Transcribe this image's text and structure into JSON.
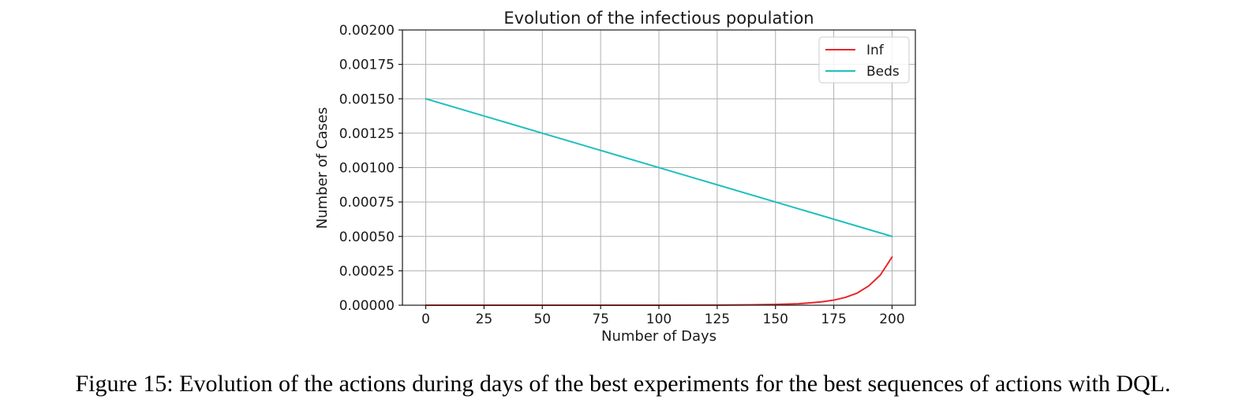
{
  "chart_data": {
    "type": "line",
    "title": "Evolution of the infectious population",
    "xlabel": "Number of Days",
    "ylabel": "Number of Cases",
    "xlim": [
      -10,
      210
    ],
    "ylim": [
      0,
      0.002
    ],
    "xticks": [
      0,
      25,
      50,
      75,
      100,
      125,
      150,
      175,
      200
    ],
    "xtick_labels": [
      "0",
      "25",
      "50",
      "75",
      "100",
      "125",
      "150",
      "175",
      "200"
    ],
    "yticks": [
      0,
      0.00025,
      0.0005,
      0.00075,
      0.001,
      0.00125,
      0.0015,
      0.00175,
      0.002
    ],
    "ytick_labels": [
      "0.00000",
      "0.00025",
      "0.00050",
      "0.00075",
      "0.00100",
      "0.00125",
      "0.00150",
      "0.00175",
      "0.00200"
    ],
    "grid": true,
    "legend_position": "top-right",
    "series": [
      {
        "name": "Inf",
        "color": "#e8262b",
        "x": [
          0,
          25,
          50,
          75,
          100,
          125,
          140,
          150,
          160,
          165,
          170,
          175,
          180,
          185,
          190,
          195,
          200
        ],
        "y": [
          0,
          0,
          0,
          0,
          0,
          1e-06,
          3e-06,
          6e-06,
          1.1e-05,
          1.7e-05,
          2.5e-05,
          3.7e-05,
          5.7e-05,
          8.8e-05,
          0.00014,
          0.00022,
          0.00035
        ]
      },
      {
        "name": "Beds",
        "color": "#1fbfbf",
        "x": [
          0,
          200
        ],
        "y": [
          0.0015,
          0.0005
        ]
      }
    ]
  },
  "caption": "Figure 15: Evolution of the actions during days of the best experiments for the best sequences of actions with DQL."
}
